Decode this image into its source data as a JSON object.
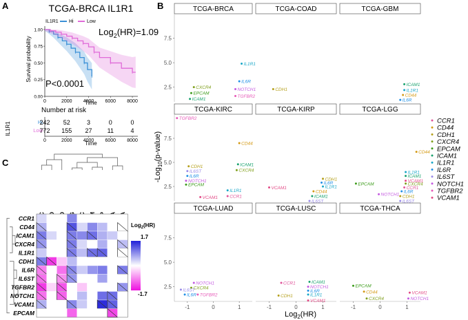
{
  "panel_labels": {
    "a": "A",
    "b": "B",
    "c": "C"
  },
  "chart_data": [
    {
      "type": "line",
      "id": "km",
      "title": "TCGA-BRCA IL1R1",
      "legend_title": "IL1R1",
      "legend": [
        {
          "name": "Hi",
          "color": "#3a8fd6"
        },
        {
          "name": "Low",
          "color": "#e06ad8"
        }
      ],
      "hr_label": "Log",
      "hr_sub": "2",
      "hr_value": "(HR)=1.09",
      "pvalue_text": "P<0.0001",
      "xlabel": "Time",
      "ylabel": "Survival probability",
      "xlim": [
        0,
        8500
      ],
      "ylim": [
        0,
        1.05
      ],
      "x_ticks": [
        0,
        2000,
        4000,
        6000,
        8000
      ],
      "y_ticks": [
        0.0,
        0.25,
        0.5,
        0.75,
        1.0
      ],
      "y_tick_labels": [
        "0.00",
        "0.25",
        "0.50",
        "0.75",
        "1.00"
      ],
      "series": [
        {
          "name": "Hi",
          "color": "#3a8fd6",
          "x": [
            0,
            400,
            800,
            1200,
            1600,
            2000,
            2400,
            2800,
            3200,
            3600,
            3900,
            4300
          ],
          "y": [
            1.0,
            0.97,
            0.93,
            0.88,
            0.83,
            0.78,
            0.72,
            0.66,
            0.58,
            0.5,
            0.4,
            0.3
          ]
        },
        {
          "name": "Low",
          "color": "#e06ad8",
          "x": [
            0,
            500,
            1000,
            1500,
            2000,
            2500,
            3000,
            3500,
            4000,
            4500,
            5000,
            6000,
            7000,
            8000,
            8300
          ],
          "y": [
            1.0,
            0.98,
            0.96,
            0.93,
            0.9,
            0.87,
            0.83,
            0.79,
            0.74,
            0.66,
            0.58,
            0.5,
            0.42,
            0.36,
            0.36
          ]
        }
      ],
      "risk_table": {
        "title": "Number at risk",
        "strata_title": "IL1R1",
        "xlabel": "Time",
        "rows": [
          {
            "label": "Hi",
            "values": [
              "242",
              "52",
              "3",
              "0",
              "0"
            ]
          },
          {
            "label": "Low",
            "values": [
              "772",
              "155",
              "27",
              "11",
              "4"
            ]
          }
        ],
        "times": [
          "0",
          "2000",
          "4000",
          "6000",
          "8000"
        ]
      }
    },
    {
      "type": "scatter",
      "id": "facets",
      "xlabel_pre": "Log",
      "xlabel_sub": "2",
      "xlabel_post": "(HR)",
      "ylabel_pre": "-Log",
      "ylabel_sub": "10",
      "ylabel_post": "(p-value)",
      "xlim": [
        -1.5,
        1.5
      ],
      "ylim": [
        1.0,
        10.0
      ],
      "x_ticks": [
        -1,
        0,
        1
      ],
      "y_ticks": [
        2.5,
        5.0,
        7.5
      ],
      "y_tick_labels": [
        "2.5",
        "5.0",
        "7.5"
      ],
      "genes": [
        {
          "name": "CCR1",
          "color": "#e0559a"
        },
        {
          "name": "CD44",
          "color": "#d49a16"
        },
        {
          "name": "CDH1",
          "color": "#b5a01c"
        },
        {
          "name": "CXCR4",
          "color": "#7f9f1c"
        },
        {
          "name": "EPCAM",
          "color": "#3d9c1c"
        },
        {
          "name": "ICAM1",
          "color": "#19a26e"
        },
        {
          "name": "IL1R1",
          "color": "#1aa7c8"
        },
        {
          "name": "IL6R",
          "color": "#2190e6"
        },
        {
          "name": "IL6ST",
          "color": "#9a8be8"
        },
        {
          "name": "NOTCH1",
          "color": "#c45ae0"
        },
        {
          "name": "TGFBR2",
          "color": "#e65ab8"
        },
        {
          "name": "VCAM1",
          "color": "#e24a86"
        }
      ],
      "facets": [
        {
          "name": "TCGA-BRCA",
          "points": [
            {
              "gene": "IL1R1",
              "x": 1.09,
              "y": 4.9
            },
            {
              "gene": "IL6R",
              "x": 1.0,
              "y": 3.1
            },
            {
              "gene": "NOTCH1",
              "x": 0.85,
              "y": 2.3
            },
            {
              "gene": "TGFBR2",
              "x": 0.85,
              "y": 1.6
            },
            {
              "gene": "CXCR4",
              "x": -0.75,
              "y": 2.5
            },
            {
              "gene": "EPCAM",
              "x": -0.85,
              "y": 1.9
            },
            {
              "gene": "ICAM1",
              "x": -0.9,
              "y": 1.3
            }
          ]
        },
        {
          "name": "TCGA-COAD",
          "points": [
            {
              "gene": "CDH1",
              "x": -0.85,
              "y": 2.3
            }
          ]
        },
        {
          "name": "TCGA-GBM",
          "points": [
            {
              "gene": "ICAM1",
              "x": 0.9,
              "y": 2.8
            },
            {
              "gene": "IL1R1",
              "x": 0.9,
              "y": 2.2
            },
            {
              "gene": "CD44",
              "x": 0.85,
              "y": 1.7
            },
            {
              "gene": "IL6R",
              "x": 0.75,
              "y": 1.2
            }
          ]
        },
        {
          "name": "TCGA-KIRC",
          "points": [
            {
              "gene": "TGFBR2",
              "x": -1.4,
              "y": 9.6
            },
            {
              "gene": "CD44",
              "x": 1.0,
              "y": 7.0
            },
            {
              "gene": "ICAM1",
              "x": 0.95,
              "y": 4.8
            },
            {
              "gene": "CXCR4",
              "x": 0.9,
              "y": 4.2
            },
            {
              "gene": "CDH1",
              "x": -0.95,
              "y": 4.6
            },
            {
              "gene": "IL6ST",
              "x": -1.0,
              "y": 4.1
            },
            {
              "gene": "IL6R",
              "x": -1.0,
              "y": 3.6
            },
            {
              "gene": "NOTCH1",
              "x": -1.05,
              "y": 3.1
            },
            {
              "gene": "EPCAM",
              "x": -1.05,
              "y": 2.7
            },
            {
              "gene": "IL1R1",
              "x": 0.55,
              "y": 2.1
            },
            {
              "gene": "CCR1",
              "x": 0.55,
              "y": 1.5
            },
            {
              "gene": "VCAM1",
              "x": -0.5,
              "y": 1.4
            }
          ]
        },
        {
          "name": "TCGA-KIRP",
          "points": [
            {
              "gene": "VCAM1",
              "x": -1.0,
              "y": 2.4
            },
            {
              "gene": "CDH1",
              "x": 1.0,
              "y": 3.3
            },
            {
              "gene": "IL6R",
              "x": 0.95,
              "y": 2.9
            },
            {
              "gene": "IL1R1",
              "x": 1.0,
              "y": 2.5
            },
            {
              "gene": "CD44",
              "x": 0.65,
              "y": 2.0
            },
            {
              "gene": "ICAM1",
              "x": 0.6,
              "y": 1.5
            },
            {
              "gene": "IL6ST",
              "x": 0.5,
              "y": 1.0
            }
          ]
        },
        {
          "name": "TCGA-LGG",
          "points": [
            {
              "gene": "CD44",
              "x": 1.35,
              "y": 6.1
            },
            {
              "gene": "EPCAM",
              "x": -0.9,
              "y": 2.8
            },
            {
              "gene": "IL1R1",
              "x": 0.95,
              "y": 4.0
            },
            {
              "gene": "ICAM1",
              "x": 0.95,
              "y": 3.6
            },
            {
              "gene": "VCAM1",
              "x": 0.95,
              "y": 3.1
            },
            {
              "gene": "CXCR4",
              "x": 0.95,
              "y": 2.8
            },
            {
              "gene": "CCR1",
              "x": 0.9,
              "y": 2.4
            },
            {
              "gene": "IL6R",
              "x": 0.8,
              "y": 2.0
            },
            {
              "gene": "NOTCH1",
              "x": -0.05,
              "y": 1.7
            },
            {
              "gene": "CDH1",
              "x": 0.75,
              "y": 1.5
            },
            {
              "gene": "IL6ST",
              "x": 0.75,
              "y": 1.0
            }
          ]
        },
        {
          "name": "TCGA-LUAD",
          "points": [
            {
              "gene": "NOTCH1",
              "x": -0.75,
              "y": 2.9
            },
            {
              "gene": "CXCR4",
              "x": -0.85,
              "y": 2.4
            },
            {
              "gene": "IL6ST",
              "x": -1.25,
              "y": 2.2
            },
            {
              "gene": "IL6R",
              "x": -1.1,
              "y": 1.7
            },
            {
              "gene": "TGFBR2",
              "x": -0.6,
              "y": 1.7
            }
          ]
        },
        {
          "name": "TCGA-LUSC",
          "points": [
            {
              "gene": "CCR1",
              "x": -0.55,
              "y": 2.9
            },
            {
              "gene": "ICAM1",
              "x": 0.5,
              "y": 3.0
            },
            {
              "gene": "NOTCH1",
              "x": 0.45,
              "y": 2.5
            },
            {
              "gene": "IL6R",
              "x": 0.45,
              "y": 2.1
            },
            {
              "gene": "IL1R1",
              "x": 0.45,
              "y": 1.7
            },
            {
              "gene": "VCAM1",
              "x": 0.45,
              "y": 1.1
            },
            {
              "gene": "CDH1",
              "x": -0.65,
              "y": 1.6
            }
          ]
        },
        {
          "name": "TCGA-THCA",
          "points": [
            {
              "gene": "EPCAM",
              "x": -1.0,
              "y": 2.6
            },
            {
              "gene": "CD44",
              "x": -0.6,
              "y": 2.0
            },
            {
              "gene": "CXCR4",
              "x": -0.5,
              "y": 1.3
            },
            {
              "gene": "VCAM1",
              "x": 1.1,
              "y": 1.9
            },
            {
              "gene": "NOTCH1",
              "x": 1.05,
              "y": 1.3
            }
          ]
        }
      ]
    },
    {
      "type": "heatmap",
      "id": "heat",
      "columns": [
        "TCGA-KIRC",
        "TCGA-COAD",
        "TCGA-LUAD",
        "TCGA-LGG",
        "TCGA-LUSC",
        "TCGA-GBM",
        "TCGA-KIRP",
        "TCGA-THCA",
        "TCGA-BRCA"
      ],
      "rows": [
        "CCR1",
        "CD44",
        "ICAM1",
        "CXCR4",
        "IL1R1",
        "CDH1",
        "IL6R",
        "IL6ST",
        "TGFBR2",
        "NOTCH1",
        "VCAM1",
        "EPCAM"
      ],
      "scale_title_pre": "Log",
      "scale_sub": "2",
      "scale_post": "(HR)",
      "scale_max_label": "1.7",
      "scale_min_label": "-1.7",
      "scale_range": [
        -1.7,
        1.7
      ],
      "values": [
        [
          0.3,
          0.0,
          0.0,
          0.9,
          0.0,
          0.0,
          0.0,
          0.0,
          0.0
        ],
        [
          0.6,
          0.0,
          0.0,
          1.3,
          0.3,
          0.9,
          0.5,
          0.0,
          0.0
        ],
        [
          1.0,
          0.3,
          0.0,
          1.0,
          0.9,
          1.1,
          0.6,
          0.4,
          0.0
        ],
        [
          0.8,
          0.0,
          0.0,
          1.0,
          0.3,
          0.0,
          0.6,
          0.0,
          0.5
        ],
        [
          0.4,
          0.0,
          0.0,
          1.0,
          0.5,
          1.1,
          1.2,
          0.0,
          0.0
        ],
        [
          1.0,
          -1.4,
          -0.4,
          0.5,
          0.0,
          0.0,
          0.0,
          0.0,
          0.0
        ],
        [
          -0.9,
          0.0,
          -1.0,
          0.9,
          0.4,
          0.8,
          1.0,
          0.0,
          1.0
        ],
        [
          -1.0,
          0.0,
          -0.8,
          0.8,
          0.0,
          0.0,
          0.7,
          0.0,
          0.0
        ],
        [
          -1.4,
          -0.3,
          -1.2,
          0.0,
          -0.4,
          0.0,
          0.0,
          0.0,
          0.8
        ],
        [
          -1.0,
          0.0,
          -1.1,
          0.0,
          0.5,
          0.0,
          1.1,
          1.1,
          0.0
        ],
        [
          0.6,
          0.0,
          0.0,
          0.9,
          0.4,
          0.0,
          1.6,
          1.2,
          0.0
        ],
        [
          0.0,
          0.0,
          0.0,
          -1.1,
          0.0,
          0.0,
          0.0,
          -1.3,
          0.0
        ]
      ],
      "significant": [
        [
          0,
          0,
          0,
          0,
          0,
          0,
          0,
          0,
          0
        ],
        [
          1,
          0,
          0,
          1,
          0,
          0,
          0,
          0,
          1
        ],
        [
          1,
          0,
          0,
          1,
          0,
          1,
          0,
          0,
          0
        ],
        [
          1,
          0,
          0,
          1,
          0,
          0,
          0,
          0,
          1
        ],
        [
          0,
          0,
          0,
          1,
          0,
          1,
          1,
          0,
          1
        ],
        [
          1,
          1,
          0,
          0,
          0,
          0,
          0,
          0,
          0
        ],
        [
          1,
          0,
          0,
          1,
          0,
          0,
          0,
          0,
          1
        ],
        [
          1,
          0,
          1,
          1,
          0,
          0,
          0,
          0,
          0
        ],
        [
          1,
          0,
          1,
          0,
          0,
          0,
          0,
          0,
          1
        ],
        [
          1,
          0,
          1,
          0,
          0,
          0,
          0,
          1,
          0
        ],
        [
          1,
          0,
          0,
          1,
          0,
          0,
          1,
          1,
          0
        ],
        [
          0,
          0,
          0,
          0,
          0,
          0,
          0,
          1,
          0
        ]
      ]
    }
  ]
}
